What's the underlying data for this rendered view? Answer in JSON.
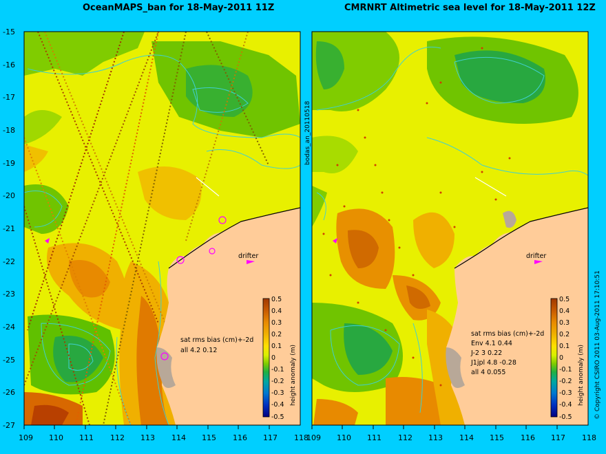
{
  "left_panel": {
    "title": "OceanMAPS_ban for 18-May-2011 11Z",
    "stats_header": "sat rms bias (cm)+-2d",
    "stats_lines": [
      "all 4.2 0.12"
    ],
    "drifter_label": "drifter"
  },
  "right_panel": {
    "title": "CMRNRT Altimetric sea level  for 18-May-2011 12Z",
    "stats_header": "sat rms bias (cm)+-2d",
    "stats_lines": [
      "Env   4.1 0.44",
      "J-2   3 0.22",
      "J1jpl 4.8 -0.28",
      "all 4 0.055"
    ],
    "drifter_label": "drifter"
  },
  "side_label": "bodas_an_20110518",
  "copyright": "© Copyright CSIRO 2011   03-Aug-2011 17:10:51",
  "y_ticks": [
    "-15",
    "-16",
    "-17",
    "-18",
    "-19",
    "-20",
    "-21",
    "-22",
    "-23",
    "-24",
    "-25",
    "-26",
    "-27"
  ],
  "x_ticks": [
    "109",
    "110",
    "111",
    "112",
    "113",
    "114",
    "115",
    "116",
    "117",
    "118"
  ],
  "colorbar": {
    "label": "height anomaly (m)",
    "ticks": [
      "0.5",
      "0.4",
      "0.3",
      "0.2",
      "0.1",
      "0",
      "-0.1",
      "-0.2",
      "-0.3",
      "-0.4",
      "-0.5"
    ],
    "colors": [
      "#a04000",
      "#c85a00",
      "#e88a00",
      "#f0b000",
      "#ffe000",
      "#e0f000",
      "#90d000",
      "#30b030",
      "#00a8a0",
      "#0070d0",
      "#0030c0",
      "#000080"
    ]
  },
  "colors": {
    "background": "#00cfff",
    "land": "#ffcc99",
    "coast_gray": "#b8a898",
    "contour": "#40d0d0",
    "drifter": "#ff00ff"
  }
}
